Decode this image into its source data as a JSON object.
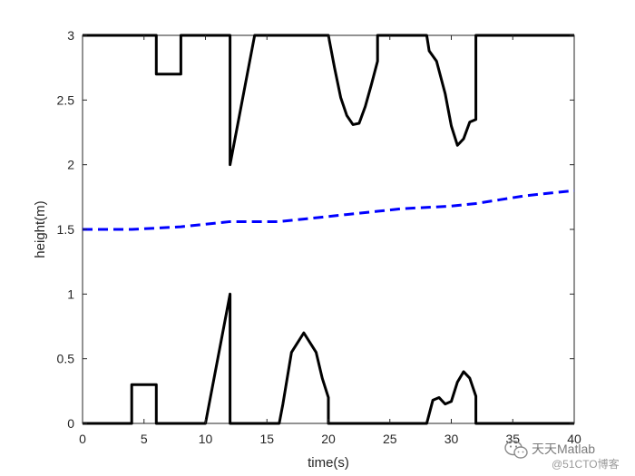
{
  "chart_data": {
    "type": "line",
    "title": "",
    "xlabel": "time(s)",
    "ylabel": "height(m)",
    "xlim": [
      0,
      40
    ],
    "ylim": [
      0,
      3
    ],
    "xticks": [
      0,
      5,
      10,
      15,
      20,
      25,
      30,
      35,
      40
    ],
    "xtick_labels": [
      "0",
      "5",
      "10",
      "15",
      "20",
      "25",
      "30",
      "35",
      "40"
    ],
    "yticks": [
      0,
      0.5,
      1,
      1.5,
      2,
      2.5,
      3
    ],
    "ytick_labels": [
      "0",
      "0.5",
      "1",
      "1.5",
      "2",
      "2.5",
      "3"
    ],
    "grid": false,
    "series": [
      {
        "style": "solid",
        "color": "#000000",
        "x": [
          0,
          4,
          4,
          6,
          6,
          10,
          12,
          12,
          16,
          16.3,
          17,
          18,
          19,
          19.5,
          20,
          20,
          28,
          28.5,
          29,
          29.5,
          30,
          30.5,
          31,
          31.5,
          32,
          32,
          40
        ],
        "y": [
          0,
          0,
          0.3,
          0.3,
          0,
          0,
          1.0,
          0,
          0,
          0.15,
          0.55,
          0.7,
          0.55,
          0.35,
          0.2,
          0,
          0,
          0.18,
          0.2,
          0.15,
          0.17,
          0.32,
          0.4,
          0.35,
          0.21,
          0,
          0
        ]
      },
      {
        "style": "solid",
        "color": "#000000",
        "x": [
          0,
          6,
          6,
          8,
          8,
          12,
          12,
          14,
          20,
          20.5,
          21,
          21.5,
          22,
          22.5,
          23,
          23.5,
          24,
          24,
          28,
          28.2,
          28.8,
          29.5,
          30,
          30.5,
          31,
          31.5,
          32,
          32,
          40
        ],
        "y": [
          3,
          3,
          2.7,
          2.7,
          3,
          3,
          2.0,
          3,
          3,
          2.75,
          2.52,
          2.38,
          2.31,
          2.32,
          2.45,
          2.62,
          2.8,
          3,
          3,
          2.88,
          2.8,
          2.55,
          2.3,
          2.15,
          2.2,
          2.33,
          2.35,
          3,
          3
        ]
      },
      {
        "style": "dashed",
        "color": "#0000ff",
        "x": [
          0,
          2,
          4,
          6,
          8,
          10,
          12,
          14,
          16,
          18,
          20,
          22,
          24,
          26,
          28,
          30,
          32,
          34,
          36,
          38,
          40
        ],
        "y": [
          1.5,
          1.5,
          1.5,
          1.51,
          1.52,
          1.54,
          1.56,
          1.56,
          1.56,
          1.58,
          1.6,
          1.62,
          1.64,
          1.66,
          1.67,
          1.68,
          1.7,
          1.73,
          1.76,
          1.78,
          1.8
        ]
      }
    ]
  },
  "watermark": {
    "name": "天天Matlab",
    "sub": "@51CTO博客",
    "icon": "wechat-icon"
  }
}
